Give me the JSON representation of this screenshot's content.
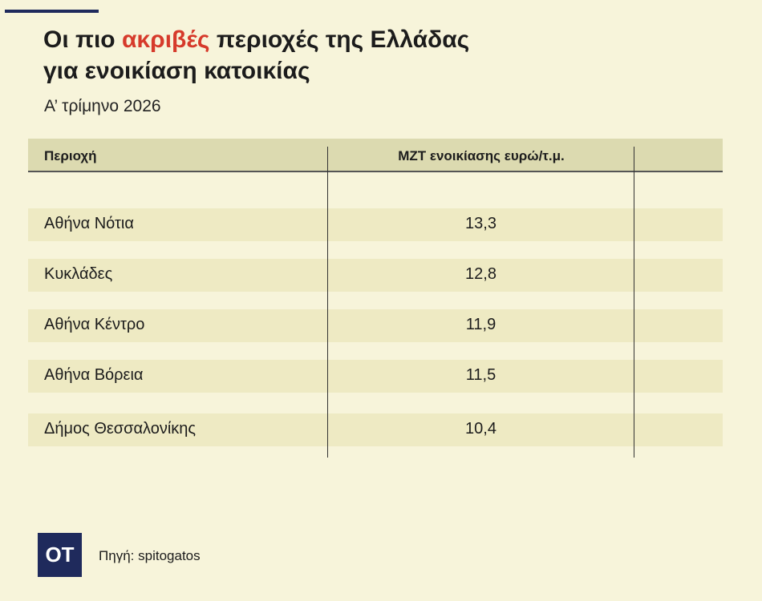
{
  "header": {
    "title_part1": "Οι πιο ",
    "title_highlight": "ακριβές",
    "title_part2": " περιοχές της Ελλάδας",
    "title_line2": "για ενοικίαση κατοικίας",
    "subtitle": "Α’ τρίμηνο 2026",
    "highlight_color": "#d63a2b"
  },
  "chart_data": {
    "type": "table",
    "columns": [
      "Περιοχή",
      "ΜΖΤ ενοικίασης ευρώ/τ.μ."
    ],
    "rows": [
      {
        "region": "Αθήνα Νότια",
        "value": "13,3"
      },
      {
        "region": "Κυκλάδες",
        "value": "12,8"
      },
      {
        "region": "Αθήνα Κέντρο",
        "value": "11,9"
      },
      {
        "region": "Αθήνα Βόρεια",
        "value": "11,5"
      },
      {
        "region": "Δήμος Θεσσαλονίκης",
        "value": "10,4"
      }
    ]
  },
  "footer": {
    "logo": "ΟΤ",
    "source": "Πηγή: spitogatos"
  }
}
